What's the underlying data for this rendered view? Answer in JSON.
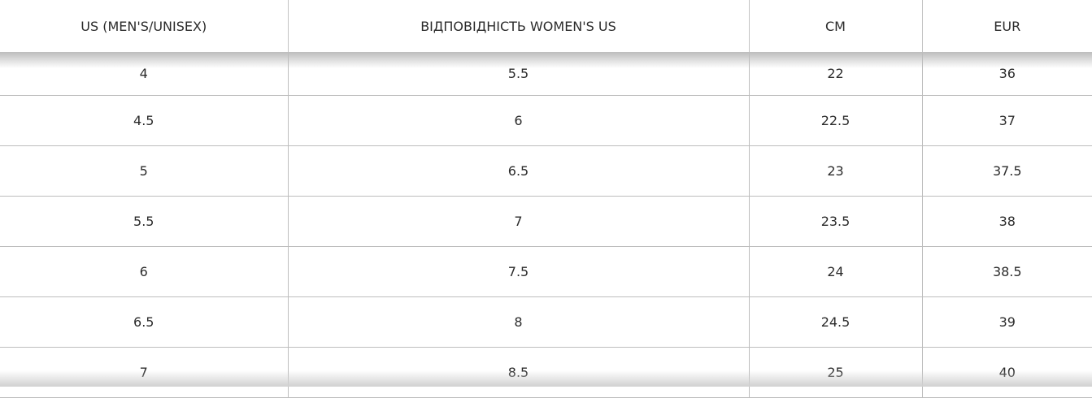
{
  "headers": [
    "US (MEN'S/UNISEX)",
    "ВІДПОВІДНІСТЬ WOMEN'S US",
    "CM",
    "EUR"
  ],
  "rows": [
    [
      "4",
      "5.5",
      "22",
      "36"
    ],
    [
      "4.5",
      "6",
      "22.5",
      "37"
    ],
    [
      "5",
      "6.5",
      "23",
      "37.5"
    ],
    [
      "5.5",
      "7",
      "23.5",
      "38"
    ],
    [
      "6",
      "7.5",
      "24",
      "38.5"
    ],
    [
      "6.5",
      "8",
      "24.5",
      "39"
    ],
    [
      "7",
      "8.5",
      "25",
      "40"
    ]
  ]
}
